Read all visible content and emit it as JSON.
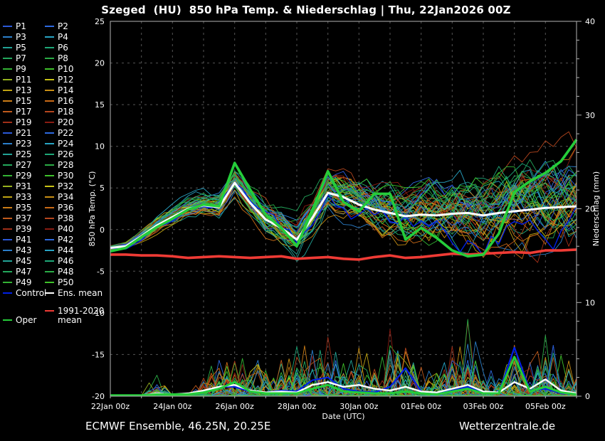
{
  "title": "Szeged  (HU)  850 hPa Temp. & Niederschlag | Thu, 22Jan2026 00Z",
  "footer": {
    "left": "ECMWF Ensemble, 46.25N, 20.25E",
    "right": "Wetterzentrale.de"
  },
  "legend": {
    "member_labels": [
      "P1",
      "P2",
      "P3",
      "P4",
      "P5",
      "P6",
      "P7",
      "P8",
      "P9",
      "P10",
      "P11",
      "P12",
      "P13",
      "P14",
      "P15",
      "P16",
      "P17",
      "P18",
      "P19",
      "P20",
      "P21",
      "P22",
      "P23",
      "P24",
      "P25",
      "P26",
      "P27",
      "P28",
      "P29",
      "P30",
      "P31",
      "P32",
      "P33",
      "P34",
      "P35",
      "P36",
      "P37",
      "P38",
      "P39",
      "P40",
      "P41",
      "P42",
      "P43",
      "P44",
      "P45",
      "P46",
      "P47",
      "P48",
      "P49",
      "P50"
    ],
    "control": {
      "label": "Control",
      "color": "#0020e6"
    },
    "ens_mean": {
      "label": "Ens. mean",
      "color": "#ffffff"
    },
    "climate": {
      "label_line1": "1991-2020",
      "label_line2": "mean",
      "color": "#ef3b35"
    },
    "oper": {
      "label": "Oper",
      "color": "#25cd3a"
    }
  },
  "chart_data": {
    "type": "line",
    "title": "Szeged (HU) 850 hPa Temp. & Niederschlag | Thu, 22Jan2026 00Z",
    "x_axis": {
      "label": "Date (UTC)",
      "range_days": [
        0,
        15
      ],
      "minor_step_days": 1,
      "major_ticks": [
        {
          "day": 0,
          "label": "22Jan 00z"
        },
        {
          "day": 2,
          "label": "24Jan 00z"
        },
        {
          "day": 4,
          "label": "26Jan 00z"
        },
        {
          "day": 6,
          "label": "28Jan 00z"
        },
        {
          "day": 8,
          "label": "30Jan 00z"
        },
        {
          "day": 10,
          "label": "01Feb 00z"
        },
        {
          "day": 12,
          "label": "03Feb 00z"
        },
        {
          "day": 14,
          "label": "05Feb 00z"
        }
      ]
    },
    "y_left": {
      "label": "850 hPa Temp. (°C)",
      "range": [
        -20,
        25
      ],
      "ticks": [
        -20,
        -15,
        -10,
        -5,
        0,
        5,
        10,
        15,
        20,
        25
      ],
      "grid_step": 5
    },
    "y_right": {
      "label": "Niederschlag (mm)",
      "range": [
        0,
        40
      ],
      "ticks": [
        0,
        10,
        20,
        30,
        40
      ],
      "minor_step": 2
    },
    "x_step_days": 0.5,
    "series": {
      "ens_mean_temp": [
        -2.2,
        -2.0,
        -0.8,
        0.5,
        1.5,
        2.5,
        2.9,
        2.7,
        5.6,
        3.2,
        1.2,
        0.2,
        -1.2,
        1.4,
        4.4,
        3.9,
        3.0,
        2.4,
        2.0,
        1.6,
        1.8,
        1.7,
        1.9,
        2.0,
        1.7,
        2.0,
        2.2,
        2.4,
        2.6,
        2.7,
        2.8
      ],
      "oper_temp": [
        -2.6,
        -2.2,
        -0.9,
        0.3,
        1.3,
        2.4,
        3.0,
        2.8,
        8.0,
        4.8,
        1.8,
        0.2,
        -2.0,
        2.3,
        7.0,
        3.3,
        2.2,
        4.3,
        4.3,
        -1.2,
        0.2,
        -1.0,
        -2.5,
        -3.2,
        -3.0,
        -0.5,
        4.5,
        5.8,
        6.8,
        8.2,
        10.8
      ],
      "climate_mean_temp": [
        -3.0,
        -3.0,
        -3.1,
        -3.1,
        -3.2,
        -3.4,
        -3.3,
        -3.2,
        -3.3,
        -3.4,
        -3.3,
        -3.2,
        -3.5,
        -3.4,
        -3.3,
        -3.5,
        -3.6,
        -3.3,
        -3.1,
        -3.4,
        -3.3,
        -3.1,
        -2.9,
        -3.0,
        -2.9,
        -2.8,
        -2.7,
        -2.8,
        -2.5,
        -2.5,
        -2.4
      ],
      "ens_mean_precip": [
        0.1,
        0.1,
        0.1,
        0.3,
        0.2,
        0.3,
        0.6,
        1.0,
        1.2,
        0.6,
        0.4,
        0.5,
        0.4,
        1.2,
        1.5,
        1.0,
        1.2,
        0.8,
        0.6,
        1.0,
        0.5,
        0.4,
        0.8,
        1.2,
        0.5,
        0.4,
        1.5,
        0.8,
        1.8,
        0.6,
        0.3
      ],
      "oper_precip": [
        0.1,
        0.1,
        0.1,
        0.2,
        0.2,
        0.2,
        0.4,
        0.8,
        1.5,
        0.5,
        0.3,
        0.3,
        0.3,
        0.8,
        1.2,
        0.5,
        0.4,
        0.3,
        0.3,
        0.5,
        0.3,
        0.2,
        0.5,
        0.8,
        0.3,
        0.3,
        4.2,
        0.5,
        1.0,
        0.4,
        0.2
      ],
      "control_precip": [
        0.1,
        0.1,
        0.1,
        0.3,
        0.2,
        0.2,
        0.5,
        1.0,
        1.0,
        0.5,
        0.4,
        0.6,
        0.5,
        1.7,
        2.0,
        0.8,
        0.5,
        0.4,
        1.0,
        3.0,
        0.5,
        0.3,
        0.6,
        1.0,
        0.4,
        0.3,
        5.2,
        0.6,
        0.8,
        0.3,
        0.2
      ]
    },
    "ensemble": {
      "count": 50,
      "seed": 11,
      "temp_spread": [
        0.4,
        0.5,
        0.7,
        0.9,
        1.1,
        1.3,
        1.4,
        1.5,
        1.7,
        2.0,
        2.2,
        2.4,
        2.6,
        2.6,
        2.6,
        2.8,
        3.0,
        3.3,
        3.6,
        3.9,
        4.2,
        4.4,
        4.6,
        4.8,
        5.0,
        5.2,
        5.4,
        5.6,
        5.8,
        6.0,
        6.2
      ],
      "precip_envelope": [
        0.2,
        0.3,
        0.5,
        2.5,
        1.0,
        0.8,
        3.0,
        6.0,
        8.0,
        5.0,
        4.0,
        8.0,
        6.0,
        8.0,
        7.0,
        5.0,
        6.0,
        5.0,
        8.0,
        8.0,
        4.0,
        3.0,
        6.0,
        9.0,
        4.0,
        3.0,
        8.0,
        5.0,
        9.0,
        6.0,
        4.0
      ]
    },
    "colors": {
      "member_cycle": [
        "#2b59d8",
        "#2e6ae0",
        "#2b7fcb",
        "#28a4c4",
        "#22a396",
        "#1ea878",
        "#23a85c",
        "#2aac46",
        "#33b334",
        "#3fc22b",
        "#96b11e",
        "#c9c316",
        "#bfa312",
        "#c88e14",
        "#cc7d16",
        "#c96a16",
        "#c05a1c",
        "#b5461e",
        "#a12f18",
        "#8a1c12"
      ],
      "control": "#0020e6",
      "ens_mean": "#ffffff",
      "oper": "#25cd3a",
      "climate": "#ef3b35",
      "grid": "#565656",
      "axis": "#b4b4b4",
      "text": "#ffffff",
      "background": "#000000"
    }
  }
}
